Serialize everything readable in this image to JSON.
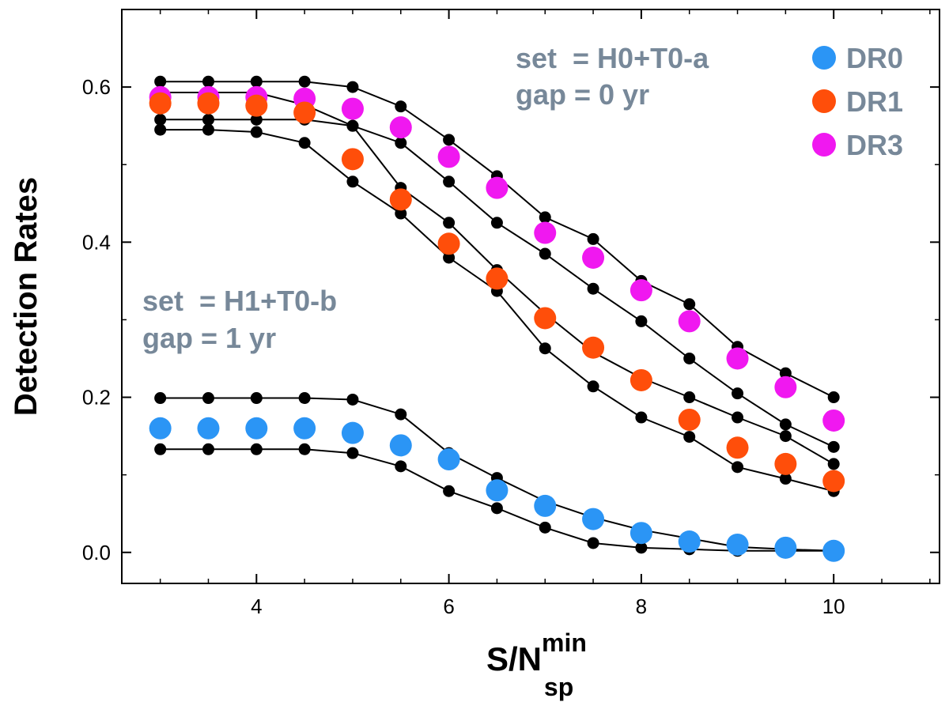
{
  "chart_data": {
    "type": "line",
    "xlabel": "S/N",
    "xlabel_sup": "min",
    "xlabel_sub": "sp",
    "ylabel": "Detection Rates",
    "xlim": [
      2.6,
      11.1
    ],
    "ylim": [
      -0.04,
      0.7
    ],
    "x_ticks": [
      4,
      6,
      8,
      10
    ],
    "y_ticks": [
      0.0,
      0.2,
      0.4,
      0.6
    ],
    "y_tick_labels": [
      "0.0",
      "0.2",
      "0.4",
      "0.6"
    ],
    "x": [
      3,
      3.5,
      4,
      4.5,
      5,
      5.5,
      6,
      6.5,
      7,
      7.5,
      8,
      8.5,
      9,
      9.5,
      10
    ],
    "annotations": [
      {
        "line1": "set  = H0+T0-a",
        "line2": "gap = 0 yr",
        "color": "#778899"
      },
      {
        "line1": "set  = H1+T0-b",
        "line2": "gap = 1 yr",
        "color": "#778899"
      }
    ],
    "legend": [
      {
        "label": "DR0",
        "color": "#2b95f5"
      },
      {
        "label": "DR1",
        "color": "#ff4e0a"
      },
      {
        "label": "DR3",
        "color": "#f018f0"
      }
    ],
    "series": [
      {
        "name": "DR3",
        "color": "#f018f0",
        "values": [
          0.587,
          0.587,
          0.587,
          0.585,
          0.572,
          0.548,
          0.51,
          0.47,
          0.412,
          0.38,
          0.338,
          0.298,
          0.25,
          0.213,
          0.17
        ]
      },
      {
        "name": "DR3 upper",
        "color": "#000000",
        "values": [
          0.607,
          0.607,
          0.607,
          0.607,
          0.6,
          0.575,
          0.532,
          0.485,
          0.432,
          0.404,
          0.35,
          0.32,
          0.265,
          0.231,
          0.2
        ]
      },
      {
        "name": "DR3 lower",
        "color": "#000000",
        "values": [
          0.558,
          0.558,
          0.558,
          0.558,
          0.55,
          0.528,
          0.478,
          0.425,
          0.385,
          0.34,
          0.298,
          0.25,
          0.205,
          0.165,
          0.136
        ]
      },
      {
        "name": "DR1",
        "color": "#ff4e0a",
        "values": [
          0.579,
          0.579,
          0.576,
          0.567,
          0.507,
          0.455,
          0.398,
          0.353,
          0.302,
          0.264,
          0.222,
          0.171,
          0.135,
          0.114,
          0.092
        ]
      },
      {
        "name": "DR1 upper",
        "color": "#000000",
        "values": [
          0.593,
          0.593,
          0.593,
          0.577,
          0.55,
          0.47,
          0.425,
          0.364,
          0.308,
          0.258,
          0.225,
          0.2,
          0.174,
          0.15,
          0.114
        ]
      },
      {
        "name": "DR1 lower",
        "color": "#000000",
        "values": [
          0.545,
          0.545,
          0.542,
          0.528,
          0.478,
          0.437,
          0.38,
          0.337,
          0.263,
          0.214,
          0.174,
          0.149,
          0.11,
          0.095,
          0.079
        ]
      },
      {
        "name": "DR0",
        "color": "#2b95f5",
        "values": [
          0.16,
          0.16,
          0.16,
          0.16,
          0.154,
          0.138,
          0.12,
          0.08,
          0.06,
          0.043,
          0.025,
          0.014,
          0.01,
          0.006,
          0.002
        ]
      },
      {
        "name": "DR0 upper",
        "color": "#000000",
        "values": [
          0.199,
          0.199,
          0.199,
          0.199,
          0.197,
          0.178,
          0.128,
          0.096,
          0.066,
          0.045,
          0.029,
          0.018,
          0.007,
          0.004,
          0.002
        ]
      },
      {
        "name": "DR0 lower",
        "color": "#000000",
        "values": [
          0.133,
          0.133,
          0.133,
          0.133,
          0.128,
          0.111,
          0.079,
          0.057,
          0.032,
          0.012,
          0.006,
          0.004,
          0.002,
          0.002,
          0.002
        ]
      }
    ]
  }
}
